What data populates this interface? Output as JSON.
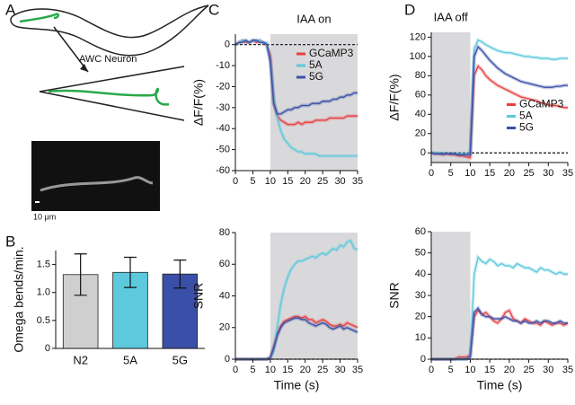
{
  "panel_labels": [
    "A",
    "B",
    "C",
    "D"
  ],
  "panel_a": {
    "neuron_label": "AWC Neuron",
    "scale_label": "10 μm"
  },
  "chart_data": [
    {
      "type": "bar",
      "ylabel": "Omega bends/min.",
      "categories": [
        "N2",
        "5A",
        "5G"
      ],
      "values": [
        1.32,
        1.36,
        1.33
      ],
      "errors": [
        0.37,
        0.27,
        0.25
      ],
      "colors": [
        "#cfcfcf",
        "#5cc9dd",
        "#3a4fa8"
      ],
      "ylim": [
        0,
        1.75
      ],
      "yticks": [
        0,
        0.5,
        {
          "value": 1,
          "label": "1.0"
        },
        1.5
      ]
    },
    {
      "type": "line",
      "ylabel": "ΔF/F(%)",
      "annotation": "IAA on",
      "shaded_x": [
        10,
        35
      ],
      "hline": 0,
      "legend": "upper right",
      "x": [
        0,
        1,
        2,
        3,
        4,
        5,
        6,
        7,
        8,
        9,
        10,
        11,
        12,
        13,
        14,
        15,
        16,
        17,
        18,
        19,
        20,
        21,
        22,
        23,
        24,
        25,
        26,
        27,
        28,
        29,
        30,
        31,
        32,
        33,
        34,
        35
      ],
      "xlim": [
        0,
        35
      ],
      "xticks": [
        0,
        5,
        10,
        15,
        20,
        25,
        30,
        35
      ],
      "ylim": [
        -60,
        5
      ],
      "yticks": [
        -60,
        -50,
        -40,
        -30,
        -20,
        -10,
        0
      ],
      "series": [
        {
          "name": "GCaMP3",
          "color": "#e8403f",
          "values": [
            0,
            1,
            2,
            1,
            1,
            2,
            1,
            2,
            1,
            0,
            -5,
            -28,
            -34,
            -36,
            -37,
            -38,
            -38,
            -38,
            -37,
            -38,
            -37,
            -37,
            -37,
            -36,
            -36,
            -36,
            -36,
            -35,
            -35,
            -35,
            -35,
            -35,
            -34,
            -34,
            -34,
            -34
          ]
        },
        {
          "name": "5A",
          "color": "#5cc9dd",
          "values": [
            0,
            1,
            2,
            2,
            1,
            2,
            2,
            2,
            1,
            1,
            -8,
            -25,
            -35,
            -41,
            -45,
            -47,
            -49,
            -50,
            -51,
            -51,
            -52,
            -52,
            -52,
            -52,
            -53,
            -53,
            -53,
            -53,
            -53,
            -53,
            -53,
            -53,
            -53,
            -53,
            -53,
            -53
          ]
        },
        {
          "name": "5G",
          "color": "#3a4fa8",
          "values": [
            0,
            1,
            1,
            2,
            1,
            2,
            2,
            1,
            1,
            0,
            -8,
            -28,
            -33,
            -33,
            -32,
            -31,
            -31,
            -30,
            -30,
            -29,
            -29,
            -29,
            -28,
            -28,
            -28,
            -27,
            -27,
            -27,
            -26,
            -26,
            -25,
            -25,
            -24,
            -24,
            -23,
            -23
          ]
        }
      ]
    },
    {
      "type": "line",
      "ylabel": "SNR",
      "xlabel": "Time (s)",
      "shaded_x": [
        10,
        35
      ],
      "hline": 0,
      "x": [
        0,
        1,
        2,
        3,
        4,
        5,
        6,
        7,
        8,
        9,
        10,
        11,
        12,
        13,
        14,
        15,
        16,
        17,
        18,
        19,
        20,
        21,
        22,
        23,
        24,
        25,
        26,
        27,
        28,
        29,
        30,
        31,
        32,
        33,
        34,
        35
      ],
      "xlim": [
        0,
        35
      ],
      "xticks": [
        0,
        5,
        10,
        15,
        20,
        25,
        30,
        35
      ],
      "ylim": [
        0,
        80
      ],
      "yticks": [
        0,
        20,
        40,
        60,
        80
      ],
      "series": [
        {
          "color": "#e8403f",
          "values": [
            0,
            0,
            0,
            0,
            0,
            0,
            0,
            0,
            0,
            0,
            1,
            8,
            16,
            21,
            24,
            25,
            26,
            27,
            27,
            26,
            27,
            25,
            25,
            23,
            24,
            25,
            24,
            22,
            21,
            21,
            22,
            21,
            23,
            22,
            21,
            20
          ]
        },
        {
          "color": "#5cc9dd",
          "values": [
            0,
            0,
            0,
            0,
            0,
            0,
            0,
            0,
            0,
            0,
            1,
            5,
            20,
            35,
            45,
            52,
            57,
            60,
            62,
            62,
            63,
            64,
            65,
            64,
            66,
            67,
            66,
            68,
            70,
            69,
            72,
            71,
            74,
            75,
            70,
            69
          ]
        },
        {
          "color": "#3a4fa8",
          "values": [
            0,
            0,
            0,
            0,
            0,
            0,
            0,
            0,
            0,
            0,
            1,
            7,
            15,
            20,
            23,
            24,
            25,
            26,
            26,
            25,
            25,
            23,
            22,
            21,
            22,
            23,
            22,
            20,
            19,
            20,
            21,
            19,
            20,
            19,
            18,
            17
          ]
        }
      ]
    },
    {
      "type": "line",
      "ylabel": "ΔF/F(%)",
      "annotation": "IAA off",
      "shaded_x": [
        0,
        10
      ],
      "hline": 0,
      "legend": "center right",
      "x": [
        0,
        1,
        2,
        3,
        4,
        5,
        6,
        7,
        8,
        9,
        10,
        11,
        12,
        13,
        14,
        15,
        16,
        17,
        18,
        19,
        20,
        21,
        22,
        23,
        24,
        25,
        26,
        27,
        28,
        29,
        30,
        31,
        32,
        33,
        34,
        35
      ],
      "xlim": [
        0,
        35
      ],
      "xticks": [
        0,
        5,
        10,
        15,
        20,
        25,
        30,
        35
      ],
      "ylim": [
        -10,
        125
      ],
      "yticks": [
        0,
        20,
        40,
        60,
        80,
        100,
        120
      ],
      "series": [
        {
          "name": "GCaMP3",
          "color": "#e8403f",
          "values": [
            0,
            -1,
            -1,
            -2,
            -1,
            -2,
            -2,
            -3,
            -3,
            -4,
            -5,
            80,
            90,
            86,
            80,
            76,
            73,
            70,
            68,
            66,
            64,
            62,
            60,
            58,
            57,
            56,
            55,
            54,
            52,
            51,
            50,
            49,
            49,
            48,
            47,
            47
          ]
        },
        {
          "name": "5A",
          "color": "#5cc9dd",
          "values": [
            0,
            0,
            0,
            -1,
            -1,
            -1,
            -1,
            -1,
            -1,
            -1,
            -1,
            108,
            117,
            115,
            112,
            110,
            108,
            106,
            105,
            104,
            104,
            103,
            102,
            101,
            100,
            100,
            99,
            99,
            98,
            98,
            98,
            97,
            97,
            98,
            98,
            98
          ]
        },
        {
          "name": "5G",
          "color": "#3a4fa8",
          "values": [
            0,
            -1,
            -1,
            -1,
            -1,
            -1,
            -1,
            -2,
            -2,
            -2,
            -2,
            100,
            110,
            106,
            101,
            96,
            92,
            88,
            85,
            82,
            80,
            78,
            76,
            74,
            73,
            72,
            71,
            70,
            69,
            68,
            68,
            68,
            69,
            69,
            70,
            70
          ]
        }
      ]
    },
    {
      "type": "line",
      "ylabel": "SNR",
      "xlabel": "Time (s)",
      "shaded_x": [
        0,
        10
      ],
      "hline": 0,
      "x": [
        0,
        1,
        2,
        3,
        4,
        5,
        6,
        7,
        8,
        9,
        10,
        11,
        12,
        13,
        14,
        15,
        16,
        17,
        18,
        19,
        20,
        21,
        22,
        23,
        24,
        25,
        26,
        27,
        28,
        29,
        30,
        31,
        32,
        33,
        34,
        35
      ],
      "xlim": [
        0,
        35
      ],
      "xticks": [
        0,
        5,
        10,
        15,
        20,
        25,
        30,
        35
      ],
      "ylim": [
        0,
        60
      ],
      "yticks": [
        0,
        10,
        20,
        30,
        40,
        50,
        60
      ],
      "series": [
        {
          "color": "#e8403f",
          "values": [
            0,
            0,
            0,
            0,
            0,
            0,
            0,
            1,
            1,
            1,
            2,
            20,
            23,
            21,
            22,
            20,
            18,
            17,
            19,
            22,
            23,
            19,
            18,
            17,
            19,
            18,
            17,
            17,
            16,
            18,
            17,
            16,
            17,
            17,
            16,
            17
          ]
        },
        {
          "color": "#5cc9dd",
          "values": [
            0,
            0,
            0,
            0,
            0,
            0,
            0,
            0,
            0,
            0,
            1,
            40,
            48,
            46,
            45,
            47,
            46,
            44,
            45,
            44,
            44,
            43,
            45,
            44,
            43,
            43,
            42,
            41,
            43,
            42,
            42,
            41,
            40,
            41,
            40,
            40
          ]
        },
        {
          "color": "#3a4fa8",
          "values": [
            0,
            0,
            0,
            0,
            0,
            0,
            0,
            0,
            0,
            0,
            1,
            22,
            24,
            21,
            20,
            20,
            19,
            19,
            19,
            20,
            19,
            18,
            18,
            17,
            18,
            17,
            17,
            18,
            17,
            18,
            18,
            17,
            17,
            18,
            17,
            17
          ]
        }
      ]
    }
  ]
}
